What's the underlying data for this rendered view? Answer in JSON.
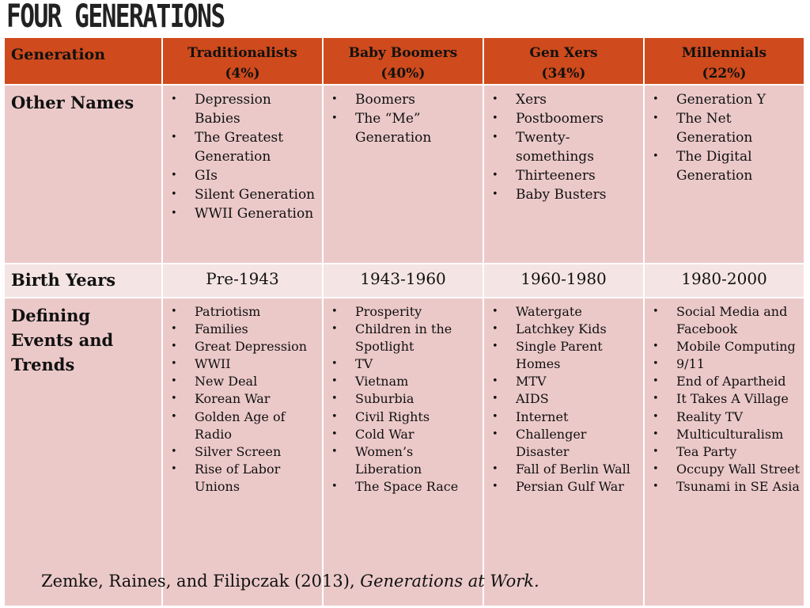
{
  "title": "FOUR GENERATIONS",
  "header": {
    "row_label": "Generation",
    "columns": [
      {
        "name": "Traditionalists",
        "share": "(4%)"
      },
      {
        "name": "Baby Boomers",
        "share": "(40%)"
      },
      {
        "name": "Gen Xers",
        "share": "(34%)"
      },
      {
        "name": "Millennials",
        "share": "(22%)"
      }
    ]
  },
  "other_names": {
    "label": "Other Names",
    "cells": [
      [
        "Depression Babies",
        "The Greatest Generation",
        "GIs",
        "Silent Generation",
        "WWII Generation"
      ],
      [
        "Boomers",
        "The “Me” Generation"
      ],
      [
        "Xers",
        "Postboomers",
        "Twenty-somethings",
        "Thirteeners",
        "Baby Busters"
      ],
      [
        "Generation Y",
        "The Net Generation",
        "The Digital Generation"
      ]
    ]
  },
  "birth_years": {
    "label": "Birth Years",
    "cells": [
      "Pre-1943",
      "1943-1960",
      "1960-1980",
      "1980-2000"
    ]
  },
  "defining_events": {
    "label": "Defining Events and Trends",
    "cells": [
      [
        "Patriotism",
        "Families",
        "Great Depression",
        "WWII",
        "New Deal",
        "Korean War",
        "Golden Age of Radio",
        "Silver Screen",
        "Rise of Labor Unions"
      ],
      [
        "Prosperity",
        "Children in the Spotlight",
        "TV",
        "Vietnam",
        "Suburbia",
        "Civil Rights",
        "Cold War",
        "Women’s Liberation",
        "The Space Race"
      ],
      [
        "Watergate",
        "Latchkey Kids",
        "Single Parent Homes",
        "MTV",
        "AIDS",
        "Internet",
        "Challenger Disaster",
        "Fall of Berlin Wall",
        "Persian Gulf War"
      ],
      [
        "Social Media and Facebook",
        "Mobile Computing",
        "9/11",
        "End of Apartheid",
        "It Takes A Village",
        "Reality TV",
        "Multiculturalism",
        "Tea Party",
        "Occupy Wall Street",
        "Tsunami in SE Asia"
      ]
    ]
  },
  "citation": {
    "text": "Zemke, Raines, and Filipczak  (2013), ",
    "work": "Generations at Work."
  },
  "colors": {
    "header_bg": "#cf4a1c",
    "row_bg": "#ecc9c9",
    "row_alt_bg": "#f5e4e4"
  }
}
